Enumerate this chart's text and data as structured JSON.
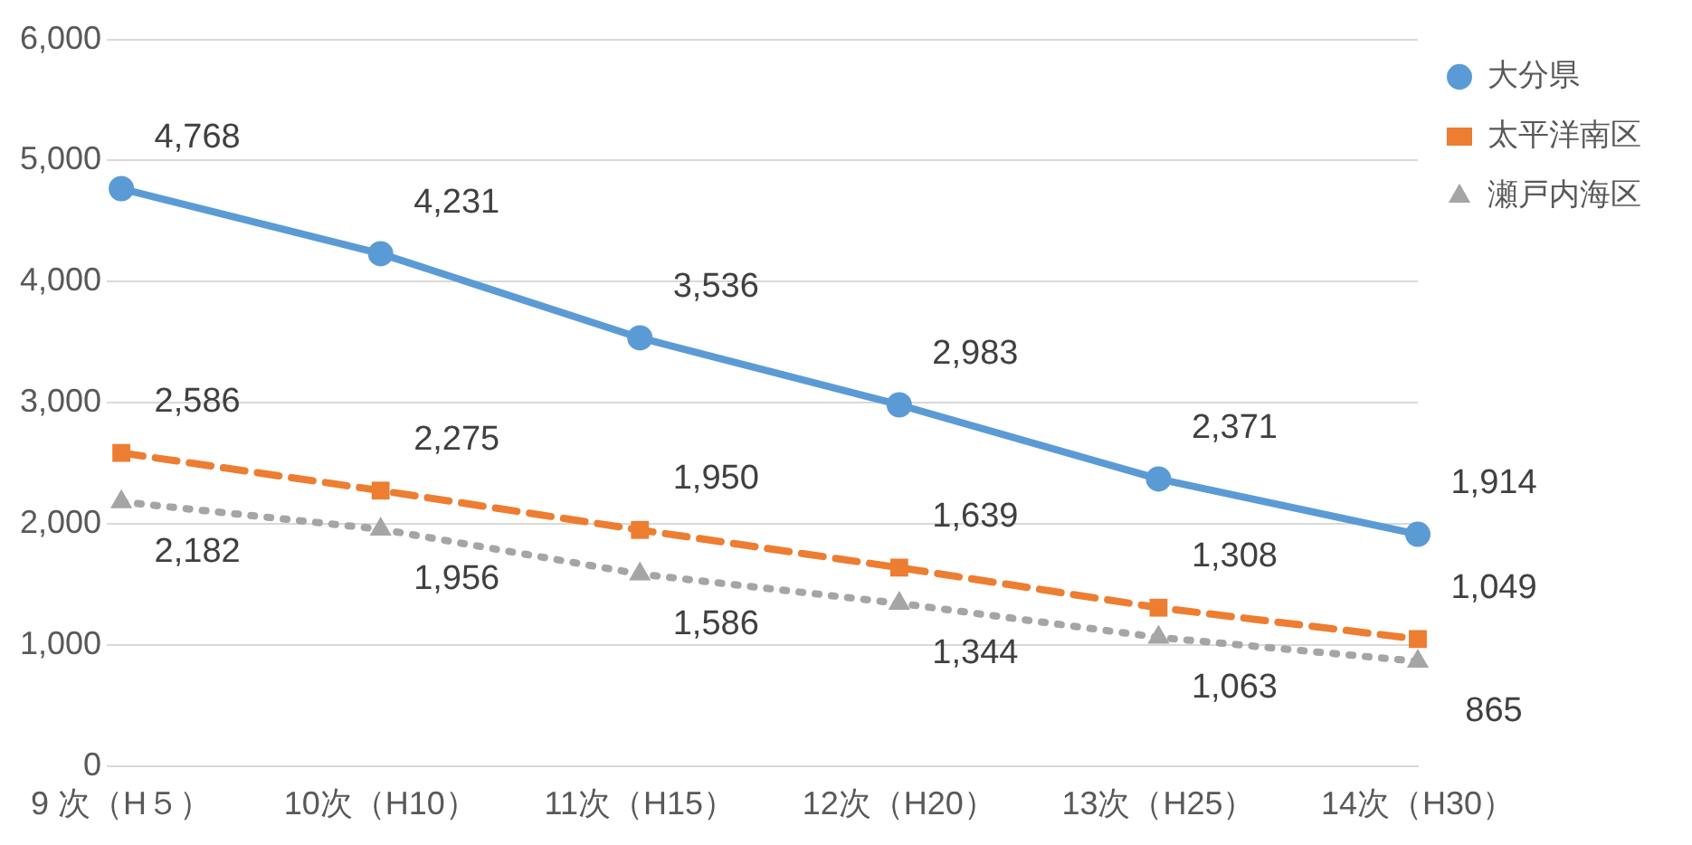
{
  "chart_data": {
    "type": "line",
    "categories": [
      "9 次（H５）",
      "10次（H10）",
      "11次（H15）",
      "12次（H20）",
      "13次（H25）",
      "14次（H30）"
    ],
    "series": [
      {
        "name": "大分県",
        "color": "#5b9bd5",
        "marker": "circle",
        "line_style": "solid",
        "values": [
          4768,
          4231,
          3536,
          2983,
          2371,
          1914
        ],
        "value_labels": [
          "4,768",
          "4,231",
          "3,536",
          "2,983",
          "2,371",
          "1,914"
        ]
      },
      {
        "name": "太平洋南区",
        "color": "#ed7d31",
        "marker": "square",
        "line_style": "dashed",
        "values": [
          2586,
          2275,
          1950,
          1639,
          1308,
          1049
        ],
        "value_labels": [
          "2,586",
          "2,275",
          "1,950",
          "1,639",
          "1,308",
          "1,049"
        ]
      },
      {
        "name": "瀬戸内海区",
        "color": "#a5a5a5",
        "marker": "triangle",
        "line_style": "dotted",
        "values": [
          2182,
          1956,
          1586,
          1344,
          1063,
          865
        ],
        "value_labels": [
          "2,182",
          "1,956",
          "1,586",
          "1,344",
          "1,063",
          "865"
        ]
      }
    ],
    "ylim": [
      0,
      6000
    ],
    "yticks": [
      0,
      {
        "value": 1000,
        "label": "1,000"
      },
      {
        "value": 2000,
        "label": "2,000"
      },
      {
        "value": 3000,
        "label": "3,000"
      },
      {
        "value": 4000,
        "label": "4,000"
      },
      {
        "value": 5000,
        "label": "5,000"
      },
      {
        "value": 6000,
        "label": "6,000"
      }
    ],
    "grid": "y",
    "legend": "top right"
  }
}
